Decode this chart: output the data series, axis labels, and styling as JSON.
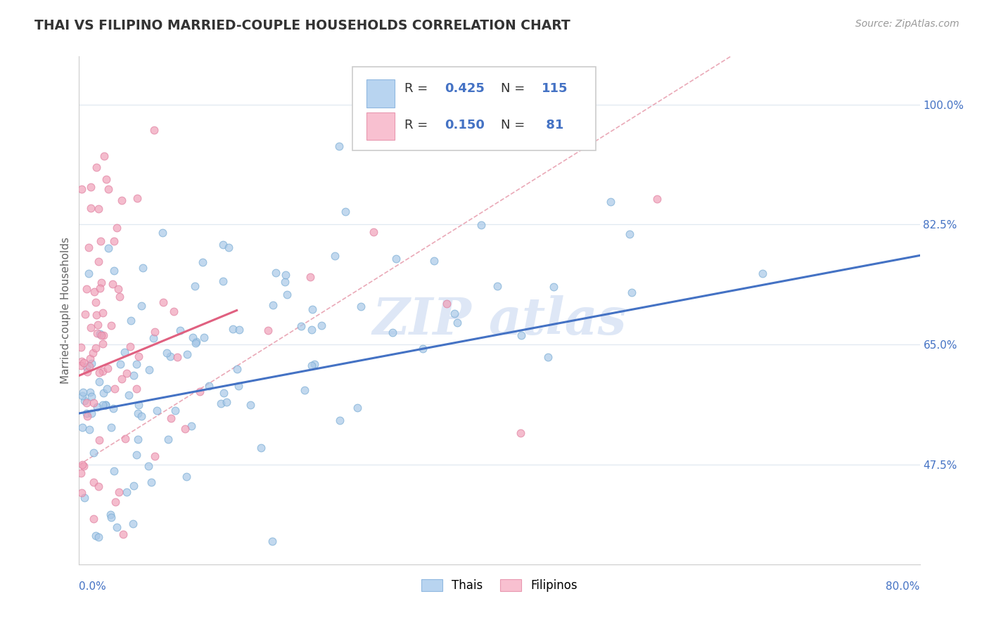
{
  "title": "THAI VS FILIPINO MARRIED-COUPLE HOUSEHOLDS CORRELATION CHART",
  "source": "Source: ZipAtlas.com",
  "ylabel": "Married-couple Households",
  "ytick_vals": [
    47.5,
    65.0,
    82.5,
    100.0
  ],
  "ytick_labels": [
    "47.5%",
    "65.0%",
    "82.5%",
    "100.0%"
  ],
  "xmin": 0.0,
  "xmax": 80.0,
  "ymin": 33.0,
  "ymax": 107.0,
  "thai_R": 0.425,
  "thai_N": 115,
  "filipino_R": 0.15,
  "filipino_N": 81,
  "blue_scatter_color": "#a8c8e8",
  "pink_scatter_color": "#f0a0b8",
  "blue_line_color": "#4472c4",
  "pink_line_color": "#e06080",
  "dash_line_color": "#e8a0b0",
  "watermark_color": "#d0dff0",
  "legend_blue_fill": "#b8d4f0",
  "legend_pink_fill": "#f8c0d0",
  "legend_R_color": "#4472c4",
  "legend_N_color": "#4472c4",
  "bottom_legend_label1": "Thais",
  "bottom_legend_label2": "Filipinos"
}
